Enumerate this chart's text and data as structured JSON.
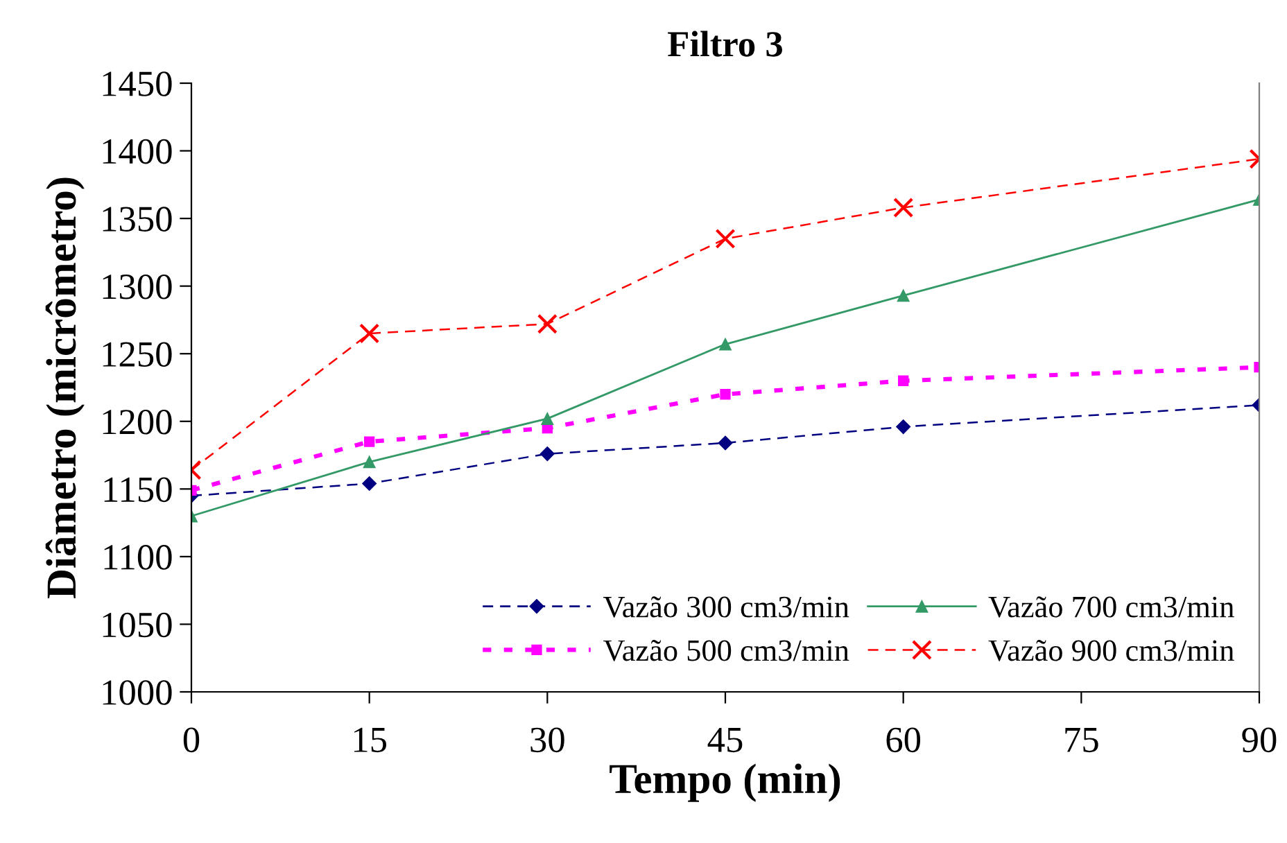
{
  "chart_data": {
    "type": "line",
    "title": "Filtro 3",
    "xlabel": "Tempo (min)",
    "ylabel": "Diâmetro (micrômetro)",
    "x": [
      0,
      15,
      30,
      45,
      60,
      90
    ],
    "series": [
      {
        "name": "Vazão 300 cm3/min",
        "color": "#000080",
        "marker": "diamond",
        "line_style": "dashed",
        "values": [
          1145,
          1154,
          1176,
          1184,
          1196,
          1212
        ]
      },
      {
        "name": "Vazão 500 cm3/min",
        "color": "#ff00ff",
        "marker": "square",
        "line_style": "dotted",
        "values": [
          1149,
          1185,
          1195,
          1220,
          1230,
          1240
        ]
      },
      {
        "name": "Vazão 700 cm3/min",
        "color": "#339966",
        "marker": "triangle",
        "line_style": "solid",
        "values": [
          1130,
          1170,
          1202,
          1257,
          1293,
          1364
        ]
      },
      {
        "name": "Vazão 900 cm3/min",
        "color": "#ff0000",
        "marker": "cross",
        "line_style": "dashed",
        "values": [
          1164,
          1265,
          1272,
          1335,
          1358,
          1394
        ]
      }
    ],
    "xlim": [
      0,
      90
    ],
    "xticks": [
      0,
      15,
      30,
      45,
      60,
      75,
      90
    ],
    "ylim": [
      1000,
      1450
    ],
    "yticks": [
      1000,
      1050,
      1100,
      1150,
      1200,
      1250,
      1300,
      1350,
      1400,
      1450
    ],
    "grid": false,
    "legend": "bottom right"
  }
}
